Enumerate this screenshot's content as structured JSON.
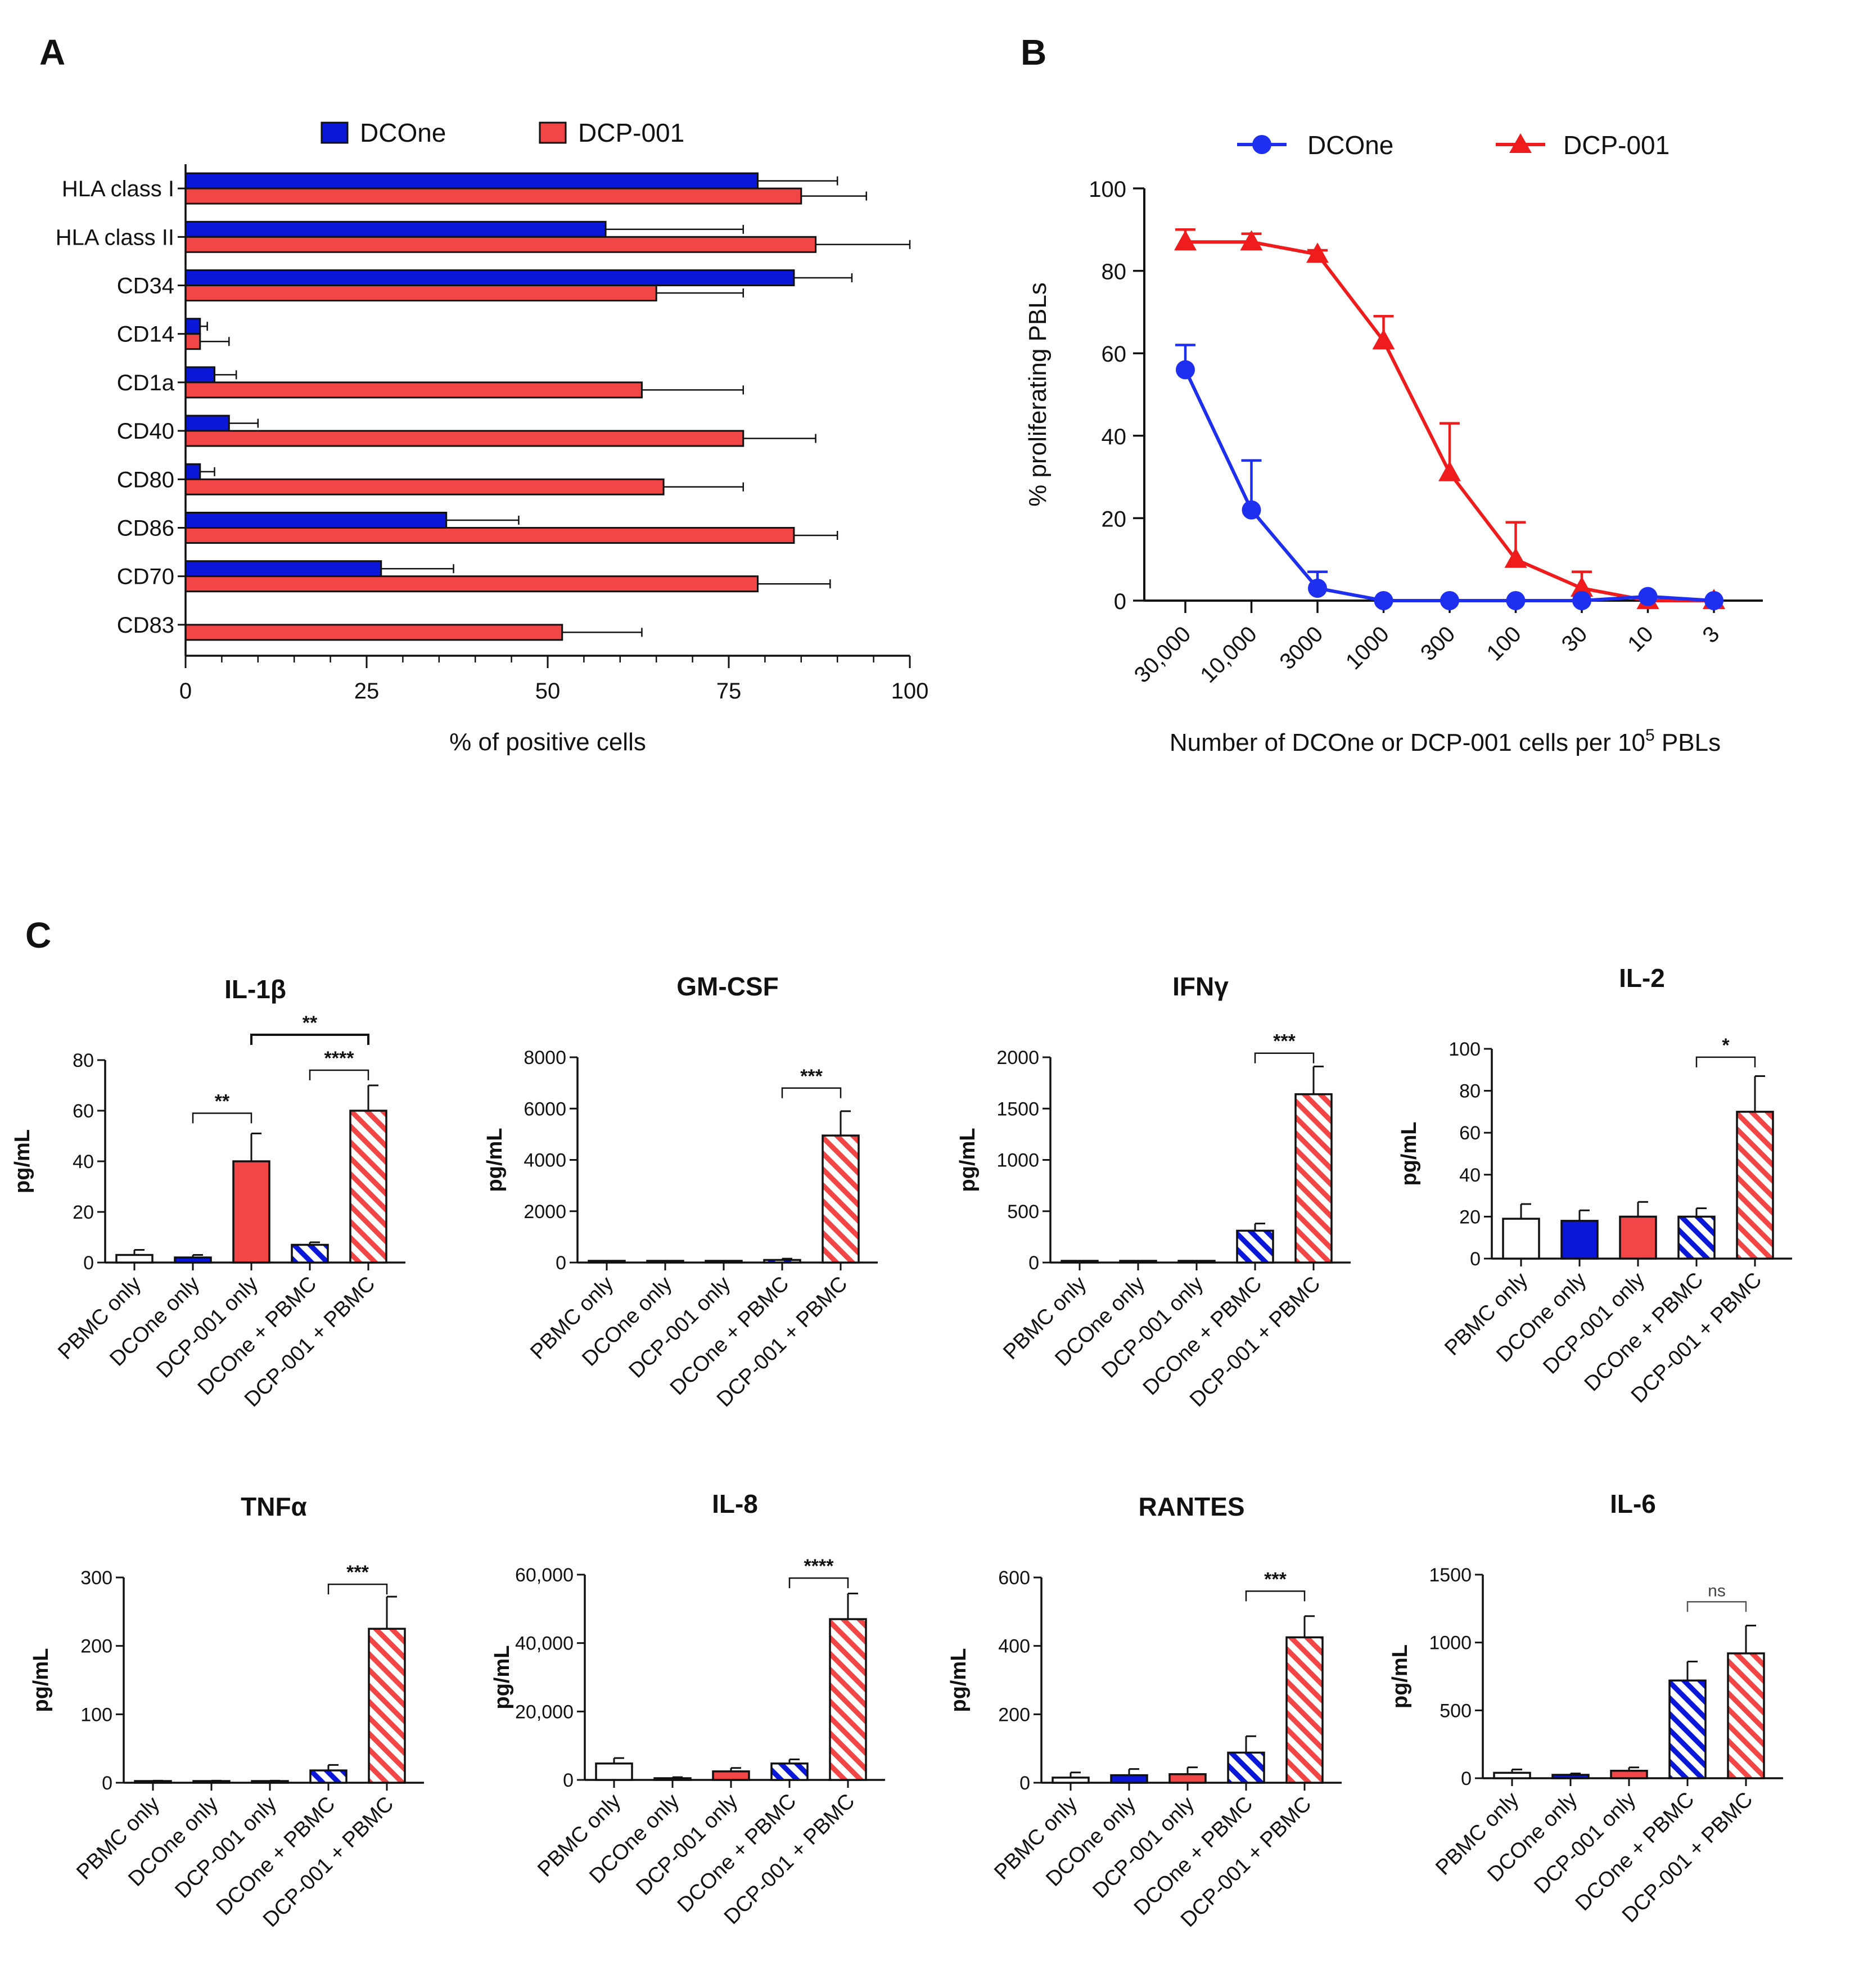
{
  "panels": {
    "A": "A",
    "B": "B",
    "C": "C"
  },
  "colors": {
    "dcone": "#0a16d8",
    "dcp001": "#f24646",
    "dcp001_line": "#ee1c1c",
    "dcone_line": "#1f2ff0",
    "black": "#111111"
  },
  "chart_data": [
    {
      "id": "A",
      "type": "bar",
      "orientation": "horizontal",
      "categories": [
        "HLA class I",
        "HLA class II",
        "CD34",
        "CD14",
        "CD1a",
        "CD40",
        "CD80",
        "CD86",
        "CD70",
        "CD83"
      ],
      "series": [
        {
          "name": "DCOne",
          "values": [
            79,
            58,
            84,
            2,
            4,
            6,
            2,
            36,
            27,
            0
          ],
          "errors": [
            11,
            19,
            8,
            1,
            3,
            4,
            2,
            10,
            10,
            0
          ]
        },
        {
          "name": "DCP-001",
          "values": [
            85,
            87,
            65,
            2,
            63,
            77,
            66,
            84,
            79,
            52
          ],
          "errors": [
            9,
            13,
            12,
            4,
            14,
            10,
            11,
            6,
            10,
            11
          ]
        }
      ],
      "xlabel": "% of positive cells",
      "xlim": [
        0,
        100
      ],
      "xticks": [
        "0",
        "25",
        "50",
        "75",
        "100"
      ],
      "legend": "top"
    },
    {
      "id": "B",
      "type": "line",
      "categories": [
        "30,000",
        "10,000",
        "3000",
        "1000",
        "300",
        "100",
        "30",
        "10",
        "3"
      ],
      "series": [
        {
          "name": "DCOne",
          "marker": "circle",
          "values": [
            56,
            22,
            3,
            0,
            0,
            0,
            0,
            1,
            0
          ],
          "errors": [
            6,
            12,
            4,
            0,
            0,
            0,
            0,
            0,
            0
          ]
        },
        {
          "name": "DCP-001",
          "marker": "triangle",
          "values": [
            87,
            87,
            84,
            63,
            31,
            10,
            3,
            0,
            0
          ],
          "errors": [
            3,
            2,
            1,
            6,
            12,
            9,
            4,
            0,
            0
          ]
        }
      ],
      "ylabel": "% proliferating PBLs",
      "xlabel_prefix": "Number of DCOne or DCP-001 cells per 10",
      "xlabel_sup": "5",
      "xlabel_suffix": " PBLs",
      "ylim": [
        0,
        100
      ],
      "yticks": [
        "0",
        "20",
        "40",
        "60",
        "80",
        "100"
      ],
      "legend": "top"
    },
    {
      "id": "C",
      "type": "bar",
      "categories": [
        "PBMC only",
        "DCOne only",
        "DCP-001 only",
        "DCOne + PBMC",
        "DCP-001 + PBMC"
      ],
      "ylabel": "pg/mL",
      "subplots": [
        {
          "title": "IL-1β",
          "ylim": [
            0,
            80
          ],
          "yticks": [
            "0",
            "20",
            "40",
            "60",
            "80"
          ],
          "values": [
            3,
            2,
            40,
            7,
            60
          ],
          "errors": [
            2,
            1,
            11,
            1,
            10
          ],
          "sig": [
            {
              "from": 1,
              "to": 2,
              "label": "**",
              "y": 59,
              "tier": 0
            },
            {
              "from": 3,
              "to": 4,
              "label": "****",
              "y": 76,
              "tier": 0
            },
            {
              "from": 2,
              "to": 4,
              "label": "**",
              "y": 90,
              "tier": 1
            }
          ]
        },
        {
          "title": "GM-CSF",
          "ylim": [
            0,
            8000
          ],
          "yticks": [
            "0",
            "2000",
            "4000",
            "6000",
            "8000"
          ],
          "values": [
            0,
            0,
            0,
            100,
            4950
          ],
          "errors": [
            0,
            0,
            0,
            50,
            950
          ],
          "sig": [
            {
              "from": 3,
              "to": 4,
              "label": "***",
              "y": 6800,
              "tier": 0
            }
          ]
        },
        {
          "title": "IFNγ",
          "ylim": [
            0,
            2000
          ],
          "yticks": [
            "0",
            "500",
            "1000",
            "1500",
            "2000"
          ],
          "values": [
            0,
            0,
            0,
            310,
            1640
          ],
          "errors": [
            0,
            0,
            0,
            70,
            270
          ],
          "sig": [
            {
              "from": 3,
              "to": 4,
              "label": "***",
              "y": 2040,
              "tier": 0
            }
          ]
        },
        {
          "title": "IL-2",
          "ylim": [
            0,
            100
          ],
          "yticks": [
            "0",
            "20",
            "40",
            "60",
            "80",
            "100"
          ],
          "values": [
            19,
            18,
            20,
            20,
            70
          ],
          "errors": [
            7,
            5,
            7,
            4,
            17
          ],
          "sig": [
            {
              "from": 3,
              "to": 4,
              "label": "*",
              "y": 96,
              "tier": 0
            }
          ]
        },
        {
          "title": "TNFα",
          "ylim": [
            0,
            300
          ],
          "yticks": [
            "0",
            "100",
            "200",
            "300"
          ],
          "values": [
            2,
            2,
            2,
            18,
            225
          ],
          "errors": [
            1,
            1,
            1,
            8,
            47
          ],
          "sig": [
            {
              "from": 3,
              "to": 4,
              "label": "***",
              "y": 290,
              "tier": 0
            }
          ]
        },
        {
          "title": "IL-8",
          "ylim": [
            0,
            60000
          ],
          "yticks": [
            "0",
            "20,000",
            "40,000",
            "60,000"
          ],
          "values": [
            4800,
            500,
            2500,
            4800,
            47000
          ],
          "errors": [
            1600,
            300,
            1000,
            1200,
            7500
          ],
          "sig": [
            {
              "from": 3,
              "to": 4,
              "label": "****",
              "y": 59000,
              "tier": 0
            }
          ]
        },
        {
          "title": "RANTES",
          "ylim": [
            0,
            600
          ],
          "yticks": [
            "0",
            "200",
            "400",
            "600"
          ],
          "values": [
            15,
            22,
            25,
            88,
            425
          ],
          "errors": [
            15,
            18,
            20,
            48,
            62
          ],
          "sig": [
            {
              "from": 3,
              "to": 4,
              "label": "***",
              "y": 560,
              "tier": 0
            }
          ]
        },
        {
          "title": "IL-6",
          "ylim": [
            0,
            1500
          ],
          "yticks": [
            "0",
            "500",
            "1000",
            "1500"
          ],
          "values": [
            40,
            25,
            55,
            720,
            920
          ],
          "errors": [
            25,
            10,
            25,
            140,
            205
          ],
          "sig": [
            {
              "from": 3,
              "to": 4,
              "label": "ns",
              "y": 1300,
              "tier": 0,
              "light": true
            }
          ]
        }
      ]
    }
  ]
}
